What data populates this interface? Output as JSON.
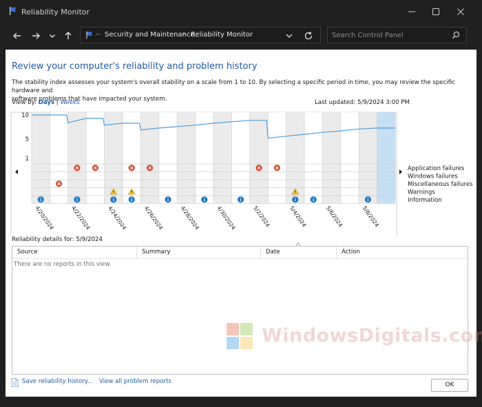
{
  "window": {
    "title": "Reliability Monitor",
    "controls": {
      "minimize": "minimize",
      "maximize": "maximize",
      "close": "close"
    }
  },
  "navigation": {
    "breadcrumbs": [
      "Security and Maintenance",
      "Reliability Monitor"
    ],
    "separator": "›",
    "search_placeholder": "Search Control Panel"
  },
  "main": {
    "title": "Review your computer's reliability and problem history",
    "description_line1": "The stability index assesses your system's overall stability on a scale from 1 to 10. By selecting a specific period in time, you may review the specific hardware and",
    "description_line2": "software problems that have impacted your system.",
    "view_by_label": "View by:",
    "view_days": "Days",
    "view_sep": "|",
    "view_weeks": "Weeks",
    "last_updated": "Last updated: 5/9/2024 3:00 PM"
  },
  "chart_data": {
    "type": "line",
    "title": "",
    "ylim": [
      1,
      10
    ],
    "y_ticks": [
      "10",
      "5",
      "1"
    ],
    "x": [
      "4/20/2024",
      "4/21/2024",
      "4/22/2024",
      "4/23/2024",
      "4/24/2024",
      "4/25/2024",
      "4/26/2024",
      "4/27/2024",
      "4/28/2024",
      "4/29/2024",
      "4/30/2024",
      "5/1/2024",
      "5/2/2024",
      "5/3/2024",
      "5/4/2024",
      "5/5/2024",
      "5/6/2024",
      "5/7/2024",
      "5/8/2024",
      "5/9/2024"
    ],
    "x_tick_labels": [
      "4/20/2024",
      "4/22/2024",
      "4/24/2024",
      "4/26/2024",
      "4/28/2024",
      "4/30/2024",
      "5/2/2024",
      "5/4/2024",
      "5/6/2024",
      "5/8/2024"
    ],
    "stability_index": [
      10,
      10,
      8.4,
      9.3,
      7.9,
      8.3,
      6.9,
      7.3,
      7.6,
      7.9,
      8.3,
      8.6,
      8.9,
      5.2,
      5.6,
      6.0,
      6.4,
      6.7,
      7.1,
      7.3
    ],
    "selected_index": 19,
    "event_rows": [
      "Application failures",
      "Windows failures",
      "Miscellaneous failures",
      "Warnings",
      "Information"
    ],
    "events": {
      "application_failures": [
        2,
        3,
        5,
        6,
        12,
        13
      ],
      "windows_failures": [],
      "miscellaneous_failures": [
        1
      ],
      "warnings": [
        4,
        5,
        14
      ],
      "information": [
        0,
        2,
        4,
        5,
        7,
        9,
        11,
        14,
        15,
        18
      ]
    },
    "colors": {
      "line": "#4a9ee0",
      "error": "#d9472b",
      "warning": "#f2c12e",
      "info": "#1e78c8",
      "selected": "#c5dff5"
    }
  },
  "details": {
    "label": "Reliability details for: 5/9/2024",
    "columns": [
      "Source",
      "Summary",
      "Date",
      "Action"
    ],
    "empty_message": "There are no reports in this view."
  },
  "footer": {
    "save_link": "Save reliability history...",
    "view_link": "View all problem reports",
    "ok_label": "OK"
  },
  "watermark": {
    "text": "WindowsDigitals.com"
  }
}
